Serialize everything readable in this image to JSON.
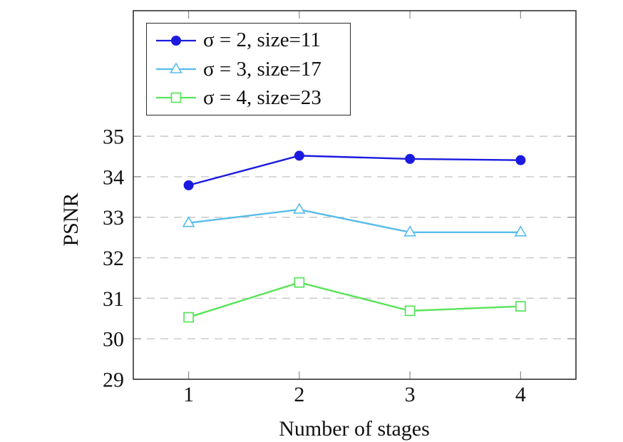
{
  "chart_data": {
    "type": "line",
    "title": "",
    "xlabel": "Number of stages",
    "ylabel": "PSNR",
    "x": [
      1,
      2,
      3,
      4
    ],
    "xticks": [
      1,
      2,
      3,
      4
    ],
    "yticks": [
      29,
      30,
      31,
      32,
      33,
      34,
      35
    ],
    "grid_yticks": [
      30,
      31,
      32,
      33,
      34,
      35
    ],
    "xlim": [
      0.5,
      4.5
    ],
    "ylim": [
      29,
      38.1
    ],
    "grid": "horizontal-dashed",
    "legend_position": "top-left",
    "series": [
      {
        "name": "σ = 2, size=11",
        "marker": "filled-circle",
        "color": "#1b1be0",
        "values": [
          33.79,
          34.52,
          34.44,
          34.41
        ]
      },
      {
        "name": "σ = 3, size=17",
        "marker": "open-triangle",
        "color": "#58bce9",
        "values": [
          32.86,
          33.19,
          32.63,
          32.63
        ]
      },
      {
        "name": "σ = 4, size=23",
        "marker": "open-square",
        "color": "#57e457",
        "values": [
          30.53,
          31.39,
          30.69,
          30.8
        ]
      }
    ],
    "colors": {
      "grid": "#c8c8c8",
      "frame": "#262626",
      "tick": "#8c8c8c",
      "text": "#111111",
      "marker_fill_open": "#ffffff"
    }
  }
}
